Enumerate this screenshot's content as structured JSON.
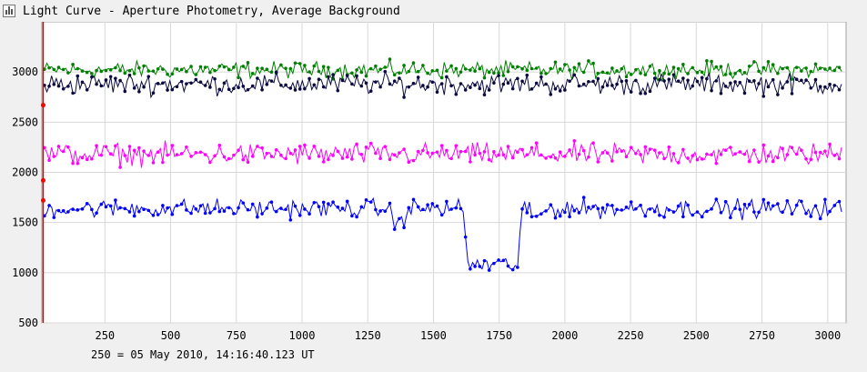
{
  "window": {
    "title": "Light Curve - Aperture Photometry, Average Background"
  },
  "footer": {
    "note": "250 = 05 May 2010, 14:16:40.123 UT"
  },
  "chart_data": {
    "type": "line",
    "title": "",
    "xlabel": "",
    "ylabel": "",
    "xlim": [
      10,
      3070
    ],
    "ylim": [
      500,
      3500
    ],
    "xticks": [
      250,
      500,
      750,
      1000,
      1250,
      1500,
      1750,
      2000,
      2250,
      2500,
      2750,
      3000
    ],
    "yticks": [
      500,
      1000,
      1500,
      2000,
      2500,
      3000
    ],
    "grid": true,
    "legend": "none",
    "cursor_x": 15,
    "series": [
      {
        "color": "#008000",
        "baseline": 3020,
        "noise": 75
      },
      {
        "color": "#0a0a40",
        "baseline": 2880,
        "noise": 95
      },
      {
        "color": "#ff00ff",
        "baseline": 2180,
        "noise": 100
      },
      {
        "color": "#0000ff",
        "baseline": 1640,
        "noise": 85,
        "dips": [
          {
            "x_start": 1620,
            "x_end": 1830,
            "depth": 560
          },
          {
            "x_start": 1330,
            "x_end": 1400,
            "depth": 160
          },
          {
            "x_start": 1850,
            "x_end": 1930,
            "depth": 90
          }
        ]
      }
    ]
  }
}
